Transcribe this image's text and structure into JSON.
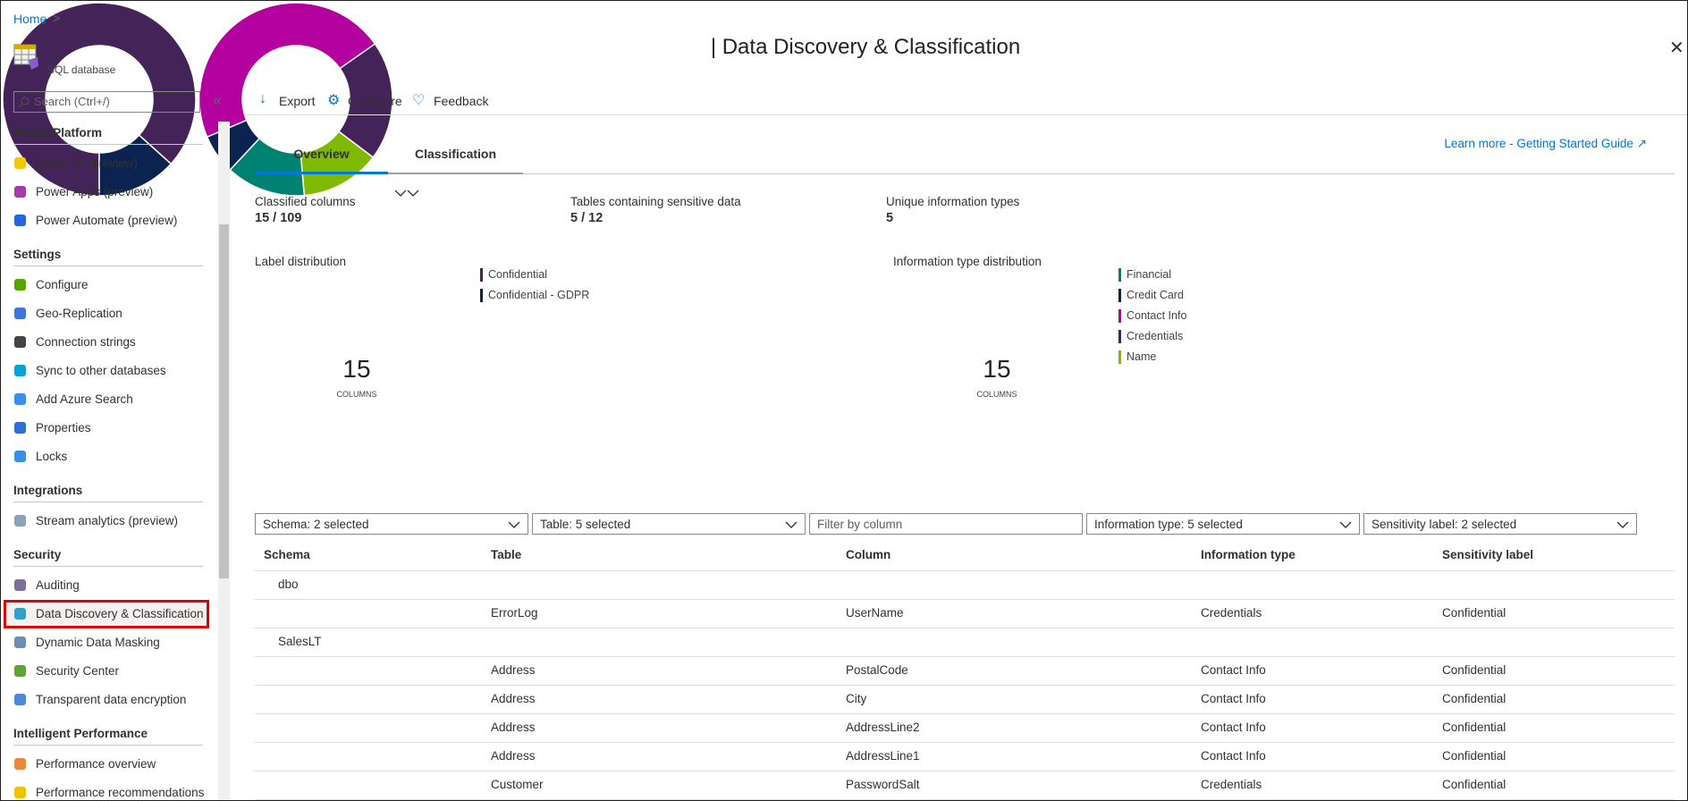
{
  "breadcrumb": {
    "home": "Home"
  },
  "resource": {
    "type": "SQL database"
  },
  "title": "| Data Discovery & Classification",
  "search_placeholder": "Search (Ctrl+/)",
  "sidebar": [
    {
      "section": "Power Platform",
      "items": [
        "Power BI (preview)",
        "Power Apps (preview)",
        "Power Automate (preview)"
      ]
    },
    {
      "section": "Settings",
      "items": [
        "Configure",
        "Geo-Replication",
        "Connection strings",
        "Sync to other databases",
        "Add Azure Search",
        "Properties",
        "Locks"
      ]
    },
    {
      "section": "Integrations",
      "items": [
        "Stream analytics (preview)"
      ]
    },
    {
      "section": "Security",
      "items": [
        "Auditing",
        "Data Discovery & Classification",
        "Dynamic Data Masking",
        "Security Center",
        "Transparent data encryption"
      ]
    },
    {
      "section": "Intelligent Performance",
      "items": [
        "Performance overview",
        "Performance recommendations"
      ]
    }
  ],
  "toolbar": [
    "Export",
    "Configure",
    "Feedback"
  ],
  "tabs": [
    "Overview",
    "Classification"
  ],
  "learn_more": "Learn more - Getting Started Guide",
  "stats": [
    {
      "label": "Classified columns",
      "value": "15 / 109"
    },
    {
      "label": "Tables containing sensitive data",
      "value": "5 / 12"
    },
    {
      "label": "Unique information types",
      "value": "5"
    }
  ],
  "charts": [
    {
      "type": "donut",
      "title": "Label distribution",
      "center_value": 15,
      "center_label": "COLUMNS",
      "series": [
        {
          "name": "Confidential",
          "color": "#442359",
          "value": 13
        },
        {
          "name": "Confidential - GDPR",
          "color": "#0b2350",
          "value": 2
        }
      ]
    },
    {
      "type": "donut",
      "title": "Information type distribution",
      "center_value": 15,
      "center_label": "COLUMNS",
      "series": [
        {
          "name": "Financial",
          "color": "#008272",
          "value": 2
        },
        {
          "name": "Credit Card",
          "color": "#0b2350",
          "value": 1
        },
        {
          "name": "Contact Info",
          "color": "#b4009e",
          "value": 7
        },
        {
          "name": "Credentials",
          "color": "#442359",
          "value": 3
        },
        {
          "name": "Name",
          "color": "#7fba00",
          "value": 2
        }
      ]
    }
  ],
  "filters": [
    "Schema: 2 selected",
    "Table: 5 selected",
    "Filter by column",
    "Information type: 5 selected",
    "Sensitivity label: 2 selected"
  ],
  "table": {
    "headers": [
      "Schema",
      "Table",
      "Column",
      "Information type",
      "Sensitivity label"
    ],
    "groups": [
      {
        "name": "dbo",
        "rows": [
          [
            "ErrorLog",
            "UserName",
            "Credentials",
            "Confidential"
          ]
        ]
      },
      {
        "name": "SalesLT",
        "rows": [
          [
            "Address",
            "PostalCode",
            "Contact Info",
            "Confidential"
          ],
          [
            "Address",
            "City",
            "Contact Info",
            "Confidential"
          ],
          [
            "Address",
            "AddressLine2",
            "Contact Info",
            "Confidential"
          ],
          [
            "Address",
            "AddressLine1",
            "Contact Info",
            "Confidential"
          ],
          [
            "Customer",
            "PasswordSalt",
            "Credentials",
            "Confidential"
          ]
        ]
      }
    ]
  }
}
